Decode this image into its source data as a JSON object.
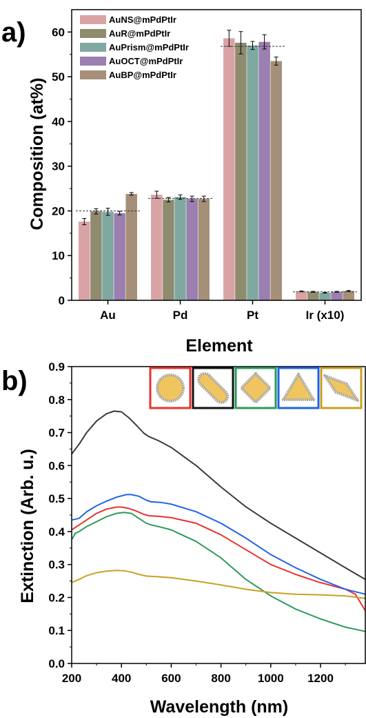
{
  "panels": {
    "a": {
      "label": "a)"
    },
    "b": {
      "label": "b)"
    }
  },
  "chart_data": [
    {
      "type": "bar",
      "panel": "a",
      "xlabel": "Element",
      "ylabel": "Composition (at%)",
      "categories": [
        "Au",
        "Pd",
        "Pt",
        "Ir (x10)"
      ],
      "ylim": [
        0,
        65
      ],
      "yticks": [
        0,
        10,
        20,
        30,
        40,
        50,
        60
      ],
      "legend_position": "top-left",
      "grid": false,
      "series": [
        {
          "name": "AuNS@mPdPtIr",
          "color": "#d9a3a6",
          "values": [
            17.6,
            23.6,
            58.6,
            2.0
          ],
          "errors": [
            0.7,
            0.8,
            1.8,
            0.1
          ]
        },
        {
          "name": "AuR@mPdPtIr",
          "color": "#8f8b6e",
          "values": [
            19.9,
            22.5,
            57.6,
            1.9
          ],
          "errors": [
            0.6,
            0.5,
            2.5,
            0.1
          ]
        },
        {
          "name": "AuPrism@mPdPtIr",
          "color": "#7fa8a0",
          "values": [
            19.8,
            23.1,
            57.0,
            1.7
          ],
          "errors": [
            0.8,
            0.5,
            0.9,
            0.1
          ]
        },
        {
          "name": "AuOCT@mPdPtIr",
          "color": "#9a7fb0",
          "values": [
            19.5,
            22.7,
            57.8,
            1.9
          ],
          "errors": [
            0.4,
            0.6,
            1.6,
            0.1
          ]
        },
        {
          "name": "AuBP@mPdPtIr",
          "color": "#a58f78",
          "values": [
            23.8,
            22.7,
            53.5,
            2.1
          ],
          "errors": [
            0.3,
            0.6,
            0.9,
            0.1
          ]
        }
      ],
      "reference_lines": [
        20,
        22.8,
        56.8,
        1.9
      ]
    },
    {
      "type": "line",
      "panel": "b",
      "xlabel": "Wavelength (nm)",
      "ylabel": "Extinction (Arb. u.)",
      "xlim": [
        200,
        1380
      ],
      "ylim": [
        0.0,
        0.9
      ],
      "xticks": [
        200,
        400,
        600,
        800,
        1000,
        1200
      ],
      "yticks": [
        0.0,
        0.1,
        0.2,
        0.3,
        0.4,
        0.5,
        0.6,
        0.7,
        0.8,
        0.9
      ],
      "grid": false,
      "series": [
        {
          "color": "#e8322e",
          "x": [
            200,
            230,
            260,
            300,
            340,
            380,
            400,
            430,
            460,
            490,
            510,
            550,
            600,
            700,
            800,
            900,
            1000,
            1100,
            1200,
            1250,
            1300,
            1340,
            1380
          ],
          "y": [
            0.405,
            0.42,
            0.435,
            0.455,
            0.468,
            0.474,
            0.474,
            0.47,
            0.462,
            0.452,
            0.448,
            0.446,
            0.442,
            0.425,
            0.39,
            0.345,
            0.3,
            0.27,
            0.245,
            0.235,
            0.225,
            0.21,
            0.16
          ]
        },
        {
          "color": "#3a3a3a",
          "x": [
            200,
            230,
            260,
            300,
            340,
            370,
            400,
            430,
            460,
            490,
            510,
            550,
            600,
            700,
            800,
            900,
            1000,
            1100,
            1200,
            1300,
            1380
          ],
          "y": [
            0.635,
            0.665,
            0.7,
            0.735,
            0.757,
            0.765,
            0.763,
            0.745,
            0.722,
            0.698,
            0.688,
            0.675,
            0.655,
            0.6,
            0.535,
            0.475,
            0.425,
            0.38,
            0.335,
            0.29,
            0.255
          ]
        },
        {
          "color": "#2a9a5a",
          "x": [
            200,
            215,
            230,
            260,
            300,
            340,
            380,
            410,
            440,
            470,
            500,
            520,
            560,
            600,
            700,
            800,
            900,
            1000,
            1100,
            1200,
            1300,
            1380
          ],
          "y": [
            0.375,
            0.395,
            0.4,
            0.415,
            0.43,
            0.445,
            0.455,
            0.458,
            0.455,
            0.44,
            0.425,
            0.42,
            0.413,
            0.405,
            0.37,
            0.32,
            0.255,
            0.205,
            0.165,
            0.135,
            0.11,
            0.097
          ]
        },
        {
          "color": "#1e63e8",
          "x": [
            200,
            230,
            260,
            300,
            340,
            380,
            420,
            440,
            470,
            500,
            520,
            560,
            600,
            700,
            800,
            900,
            1000,
            1100,
            1200,
            1300,
            1380
          ],
          "y": [
            0.435,
            0.44,
            0.46,
            0.478,
            0.492,
            0.504,
            0.512,
            0.512,
            0.507,
            0.495,
            0.49,
            0.488,
            0.483,
            0.46,
            0.425,
            0.38,
            0.33,
            0.29,
            0.255,
            0.225,
            0.21
          ]
        },
        {
          "color": "#c9a021",
          "x": [
            200,
            230,
            260,
            300,
            340,
            380,
            410,
            440,
            470,
            500,
            540,
            600,
            700,
            800,
            900,
            1000,
            1100,
            1200,
            1300,
            1380
          ],
          "y": [
            0.245,
            0.255,
            0.266,
            0.275,
            0.28,
            0.282,
            0.281,
            0.277,
            0.27,
            0.265,
            0.263,
            0.26,
            0.25,
            0.238,
            0.225,
            0.215,
            0.21,
            0.208,
            0.205,
            0.197
          ]
        }
      ],
      "inset_icons": [
        {
          "name": "sphere-icon",
          "frame_color": "#e8322e"
        },
        {
          "name": "rod-icon",
          "frame_color": "#111111"
        },
        {
          "name": "octahedron-icon",
          "frame_color": "#2a9a5a"
        },
        {
          "name": "prism-icon",
          "frame_color": "#1e63e8"
        },
        {
          "name": "bipyramid-icon",
          "frame_color": "#c9a021"
        }
      ]
    }
  ]
}
